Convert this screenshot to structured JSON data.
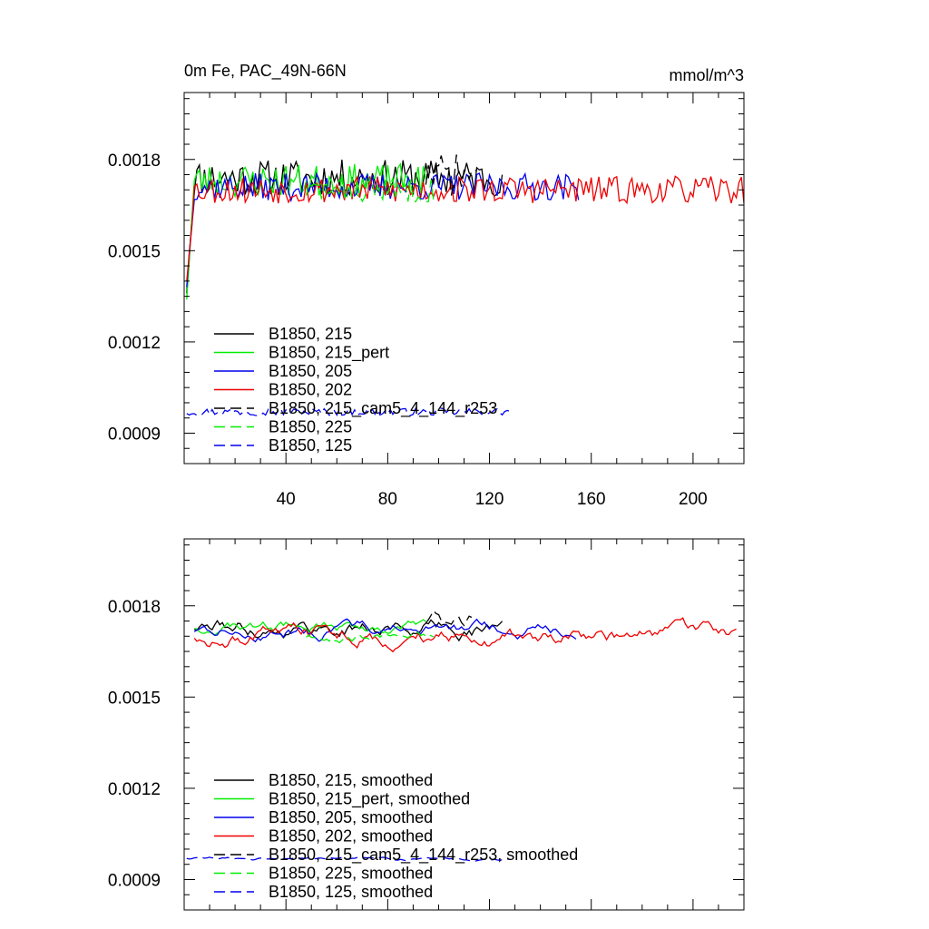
{
  "chart_data": [
    {
      "type": "line",
      "title": "0m Fe, PAC_49N-66N",
      "units": "mmol/m^3",
      "xlim": [
        0,
        220
      ],
      "ylim": [
        0.0008,
        0.00202
      ],
      "xticks": [
        40,
        80,
        120,
        160,
        200
      ],
      "xtick_labels": [
        "40",
        "80",
        "120",
        "160",
        "200"
      ],
      "yticks": [
        0.0009,
        0.0012,
        0.0015,
        0.0018
      ],
      "ytick_labels": [
        "0.0009",
        "0.0012",
        "0.0015",
        "0.0018"
      ],
      "legend_position": "bottom-left",
      "series": [
        {
          "name": "B1850, 215",
          "color": "#000000",
          "dash": "solid",
          "x_range": [
            1,
            125
          ],
          "mean": 0.00174,
          "amp": 6e-05,
          "seed": 11,
          "start": 0.00136
        },
        {
          "name": "B1850, 215_pert",
          "color": "#00ee00",
          "dash": "solid",
          "x_range": [
            1,
            95
          ],
          "mean": 0.00173,
          "amp": 5.5e-05,
          "seed": 23,
          "start": 0.00134
        },
        {
          "name": "B1850, 205",
          "color": "#0000ee",
          "dash": "solid",
          "x_range": [
            1,
            155
          ],
          "mean": 0.00171,
          "amp": 4.5e-05,
          "seed": 37,
          "start": 0.00138
        },
        {
          "name": "B1850, 202",
          "color": "#ee0000",
          "dash": "solid",
          "x_range": [
            1,
            220
          ],
          "mean": 0.0017,
          "amp": 4.5e-05,
          "seed": 53,
          "start": 0.0014
        },
        {
          "name": "B1850, 215_cam5_4_144_r253",
          "color": "#000000",
          "dash": "dashed",
          "x_range": [
            95,
            115
          ],
          "mean": 0.00175,
          "amp": 7e-05,
          "seed": 71
        },
        {
          "name": "B1850, 225",
          "color": "#00ee00",
          "dash": "dashed",
          "x_range": [
            48,
            98
          ],
          "mean": 0.0017,
          "amp": 4e-05,
          "seed": 83
        },
        {
          "name": "B1850, 125",
          "color": "#0000ee",
          "dash": "dashed",
          "x_range": [
            1,
            128
          ],
          "mean": 0.00097,
          "amp": 1.2e-05,
          "seed": 97
        }
      ]
    },
    {
      "type": "line",
      "title": "",
      "xlim": [
        0,
        220
      ],
      "ylim": [
        0.0008,
        0.00202
      ],
      "yticks": [
        0.0009,
        0.0012,
        0.0015,
        0.0018
      ],
      "ytick_labels": [
        "0.0009",
        "0.0012",
        "0.0015",
        "0.0018"
      ],
      "legend_position": "bottom-left",
      "series": [
        {
          "name": "B1850, 215, smoothed",
          "color": "#000000",
          "dash": "solid",
          "x_range": [
            4,
            125
          ],
          "mean": 0.00173,
          "amp": 3.5e-05,
          "seed": 111
        },
        {
          "name": "B1850, 215_pert, smoothed",
          "color": "#00ee00",
          "dash": "solid",
          "x_range": [
            4,
            95
          ],
          "mean": 0.00173,
          "amp": 2.5e-05,
          "seed": 123
        },
        {
          "name": "B1850, 205, smoothed",
          "color": "#0000ee",
          "dash": "solid",
          "x_range": [
            4,
            154
          ],
          "mean": 0.00172,
          "amp": 2.8e-05,
          "seed": 137
        },
        {
          "name": "B1850, 202, smoothed",
          "color": "#ee0000",
          "dash": "solid",
          "x_range": [
            4,
            217
          ],
          "mean": 0.0017,
          "amp": 3.5e-05,
          "seed": 153
        },
        {
          "name": "B1850, 215_cam5_4_144_r253, smoothed",
          "color": "#000000",
          "dash": "dashed",
          "x_range": [
            95,
            113
          ],
          "mean": 0.00175,
          "amp": 4e-05,
          "seed": 171
        },
        {
          "name": "B1850, 225, smoothed",
          "color": "#00ee00",
          "dash": "dashed",
          "x_range": [
            48,
            98
          ],
          "mean": 0.0017,
          "amp": 2e-05,
          "seed": 183
        },
        {
          "name": "B1850, 125, smoothed",
          "color": "#0000ee",
          "dash": "dashed",
          "x_range": [
            1,
            128
          ],
          "mean": 0.00097,
          "amp": 6e-06,
          "seed": 197
        }
      ]
    }
  ]
}
